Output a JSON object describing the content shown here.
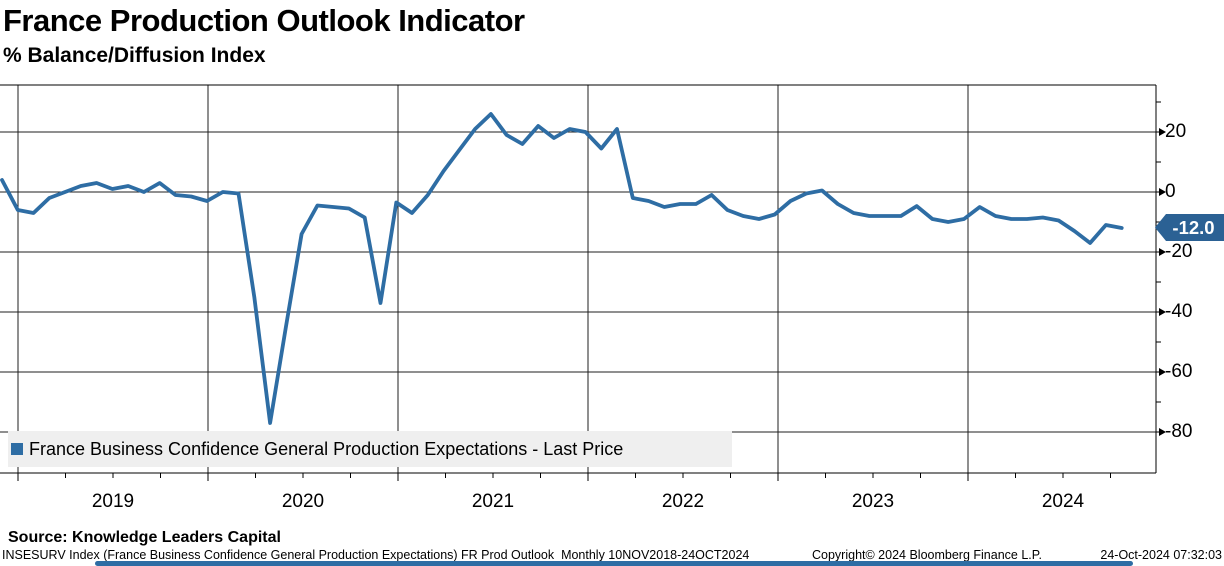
{
  "title": "France Production Outlook Indicator",
  "subtitle": "% Balance/Diffusion Index",
  "legend": {
    "label": "France Business Confidence General Production Expectations - Last Price"
  },
  "last_price": {
    "label": "-12.0",
    "value": -12.0
  },
  "source_line": "Source: Knowledge Leaders Capital",
  "footer": {
    "left": "INSESURV Index (France Business Confidence General Production Expectations) FR Prod Outlook  Monthly 10NOV2018-24OCT2024",
    "copyright": "Copyright© 2024 Bloomberg Finance L.P.",
    "timestamp": "24-Oct-2024 07:32:03"
  },
  "colors": {
    "line": "#2e6da4",
    "badge": "#2b6194",
    "legend_bg": "#efefef",
    "grid": "#1f1f1f",
    "axis": "#000000",
    "text": "#000000"
  },
  "chart_data": {
    "type": "line",
    "title": "France Production Outlook Indicator",
    "ylabel": "% Balance/Diffusion Index",
    "series_name": "France Business Confidence General Production Expectations - Last Price",
    "frequency": "Monthly",
    "date_range": "10NOV2018-24OCT2024",
    "x_axis_years": [
      "2019",
      "2020",
      "2021",
      "2022",
      "2023",
      "2024"
    ],
    "y_ticks": [
      20,
      0,
      -20,
      -40,
      -60,
      -80
    ],
    "y_minor_ticks": [
      30,
      10,
      -10,
      -30,
      -50,
      -70
    ],
    "ylim": [
      -94,
      36
    ],
    "grid": true,
    "legend_position": "bottom-left",
    "last_price": -12.0,
    "x_months": [
      "2018-11",
      "2018-12",
      "2019-01",
      "2019-02",
      "2019-03",
      "2019-04",
      "2019-05",
      "2019-06",
      "2019-07",
      "2019-08",
      "2019-09",
      "2019-10",
      "2019-11",
      "2019-12",
      "2020-01",
      "2020-02",
      "2020-03",
      "2020-04",
      "2020-05",
      "2020-06",
      "2020-07",
      "2020-08",
      "2020-09",
      "2020-10",
      "2020-11",
      "2020-12",
      "2021-01",
      "2021-02",
      "2021-03",
      "2021-04",
      "2021-05",
      "2021-06",
      "2021-07",
      "2021-08",
      "2021-09",
      "2021-10",
      "2021-11",
      "2021-12",
      "2022-01",
      "2022-02",
      "2022-03",
      "2022-04",
      "2022-05",
      "2022-06",
      "2022-07",
      "2022-08",
      "2022-09",
      "2022-10",
      "2022-11",
      "2022-12",
      "2023-01",
      "2023-02",
      "2023-03",
      "2023-04",
      "2023-05",
      "2023-06",
      "2023-07",
      "2023-08",
      "2023-09",
      "2023-10",
      "2023-11",
      "2023-12",
      "2024-01",
      "2024-02",
      "2024-03",
      "2024-04",
      "2024-05",
      "2024-06",
      "2024-07",
      "2024-08",
      "2024-09",
      "2024-10"
    ],
    "values": [
      4,
      -6,
      -7,
      -2,
      0,
      2,
      3,
      1,
      2,
      0,
      3,
      -1,
      -1.5,
      -3,
      0,
      -0.5,
      -35,
      -77,
      -45,
      -14,
      -4.5,
      -5,
      -5.5,
      -8.5,
      -37,
      -3.5,
      -7,
      -1,
      7,
      14,
      21,
      26,
      19,
      16,
      22,
      18,
      21,
      20,
      14.5,
      21,
      -2,
      -3,
      -5,
      -4,
      -4,
      -1,
      -6,
      -8,
      -9,
      -7.5,
      -3,
      -0.5,
      0.5,
      -4,
      -7,
      -8,
      -8,
      -8,
      -4.7,
      -9,
      -10,
      -9,
      -5,
      -8,
      -9,
      -9,
      -8.5,
      -9.5,
      -13,
      -17,
      -11,
      -12
    ]
  }
}
